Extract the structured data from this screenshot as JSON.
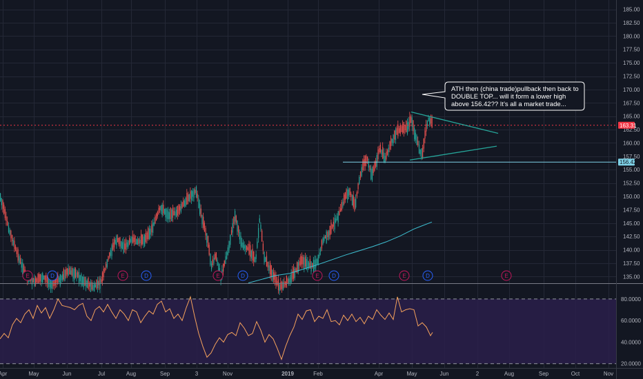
{
  "chart_data": {
    "type": "candlestick",
    "price_axis": {
      "ticks": [
        "185.00",
        "182.50",
        "180.00",
        "177.50",
        "175.00",
        "172.50",
        "170.00",
        "167.50",
        "165.00",
        "162.50",
        "160.00",
        "157.50",
        "155.00",
        "152.50",
        "150.00",
        "147.50",
        "145.00",
        "142.50",
        "140.00",
        "137.50",
        "135.00"
      ],
      "ylim": [
        133.75,
        186.75
      ]
    },
    "rsi_axis": {
      "ticks": [
        "80.0000",
        "60.0000",
        "40.0000",
        "20.0000"
      ],
      "ylim": [
        16,
        94
      ],
      "bands": [
        80,
        20
      ]
    },
    "x_axis": {
      "labels": [
        "Apr",
        "May",
        "Jun",
        "Jul",
        "Aug",
        "Sep",
        "3",
        "Nov",
        "2019",
        "Feb",
        "Apr",
        "May",
        "Jun",
        "2",
        "Aug",
        "Sep",
        "Oct",
        "Nov"
      ],
      "bold_label": "2019"
    },
    "candles_keypoints": [
      [
        0,
        150
      ],
      [
        12,
        144
      ],
      [
        25,
        139
      ],
      [
        38,
        135
      ],
      [
        50,
        134
      ],
      [
        62,
        135
      ],
      [
        74,
        133.5
      ],
      [
        86,
        134.5
      ],
      [
        98,
        136
      ],
      [
        110,
        135.5
      ],
      [
        122,
        134
      ],
      [
        134,
        133
      ],
      [
        146,
        134
      ],
      [
        158,
        139
      ],
      [
        168,
        142
      ],
      [
        180,
        140.5
      ],
      [
        190,
        142
      ],
      [
        200,
        141.5
      ],
      [
        210,
        142
      ],
      [
        220,
        144
      ],
      [
        232,
        148
      ],
      [
        244,
        146.5
      ],
      [
        256,
        147
      ],
      [
        268,
        149
      ],
      [
        278,
        150.5
      ],
      [
        284,
        151
      ],
      [
        292,
        146
      ],
      [
        300,
        142
      ],
      [
        306,
        137
      ],
      [
        312,
        139
      ],
      [
        320,
        135
      ],
      [
        330,
        140
      ],
      [
        340,
        146.5
      ],
      [
        350,
        141
      ],
      [
        360,
        140
      ],
      [
        370,
        138
      ],
      [
        376,
        146
      ],
      [
        382,
        139
      ],
      [
        388,
        137
      ],
      [
        396,
        135
      ],
      [
        404,
        133
      ],
      [
        412,
        133.5
      ],
      [
        420,
        134.5
      ],
      [
        428,
        136
      ],
      [
        436,
        138
      ],
      [
        444,
        137.5
      ],
      [
        452,
        137
      ],
      [
        460,
        138
      ],
      [
        468,
        142
      ],
      [
        476,
        143
      ],
      [
        484,
        145
      ],
      [
        492,
        147
      ],
      [
        500,
        150
      ],
      [
        506,
        151
      ],
      [
        514,
        148
      ],
      [
        520,
        153
      ],
      [
        526,
        156
      ],
      [
        532,
        157
      ],
      [
        538,
        154
      ],
      [
        544,
        156
      ],
      [
        550,
        159
      ],
      [
        558,
        157
      ],
      [
        566,
        160
      ],
      [
        574,
        162
      ],
      [
        582,
        162.5
      ],
      [
        590,
        163
      ],
      [
        596,
        164.5
      ],
      [
        600,
        162
      ],
      [
        604,
        160.5
      ],
      [
        608,
        158.5
      ],
      [
        612,
        158
      ],
      [
        616,
        162
      ],
      [
        620,
        164.5
      ],
      [
        624,
        164
      ],
      [
        627,
        163.5
      ]
    ],
    "ma_points": [
      [
        360,
        133.8
      ],
      [
        380,
        134.5
      ],
      [
        400,
        135.2
      ],
      [
        420,
        135.6
      ],
      [
        440,
        136.4
      ],
      [
        460,
        137.2
      ],
      [
        480,
        138.1
      ],
      [
        500,
        139.0
      ],
      [
        520,
        139.8
      ],
      [
        540,
        140.6
      ],
      [
        560,
        141.5
      ],
      [
        580,
        142.6
      ],
      [
        600,
        143.9
      ],
      [
        610,
        144.4
      ],
      [
        626,
        145.2
      ]
    ],
    "rsi_points": [
      [
        0,
        43
      ],
      [
        6,
        48
      ],
      [
        12,
        44
      ],
      [
        18,
        56
      ],
      [
        24,
        62
      ],
      [
        30,
        58
      ],
      [
        36,
        66
      ],
      [
        42,
        70
      ],
      [
        48,
        62
      ],
      [
        54,
        74
      ],
      [
        60,
        67
      ],
      [
        66,
        72
      ],
      [
        72,
        62
      ],
      [
        78,
        70
      ],
      [
        84,
        80
      ],
      [
        90,
        74
      ],
      [
        96,
        73
      ],
      [
        102,
        72
      ],
      [
        108,
        70
      ],
      [
        114,
        74
      ],
      [
        120,
        76
      ],
      [
        126,
        64
      ],
      [
        132,
        60
      ],
      [
        138,
        70
      ],
      [
        144,
        73
      ],
      [
        150,
        68
      ],
      [
        156,
        75
      ],
      [
        162,
        68
      ],
      [
        168,
        62
      ],
      [
        174,
        70
      ],
      [
        180,
        66
      ],
      [
        186,
        60
      ],
      [
        192,
        70
      ],
      [
        198,
        68
      ],
      [
        204,
        58
      ],
      [
        210,
        64
      ],
      [
        216,
        69
      ],
      [
        222,
        66
      ],
      [
        228,
        75
      ],
      [
        234,
        78
      ],
      [
        240,
        68
      ],
      [
        246,
        71
      ],
      [
        252,
        62
      ],
      [
        258,
        66
      ],
      [
        264,
        60
      ],
      [
        270,
        72
      ],
      [
        276,
        82
      ],
      [
        282,
        64
      ],
      [
        288,
        48
      ],
      [
        294,
        36
      ],
      [
        300,
        26
      ],
      [
        306,
        30
      ],
      [
        312,
        38
      ],
      [
        318,
        44
      ],
      [
        324,
        40
      ],
      [
        330,
        47
      ],
      [
        336,
        49
      ],
      [
        342,
        46
      ],
      [
        348,
        58
      ],
      [
        354,
        53
      ],
      [
        360,
        46
      ],
      [
        366,
        48
      ],
      [
        372,
        59
      ],
      [
        378,
        51
      ],
      [
        384,
        40
      ],
      [
        390,
        47
      ],
      [
        396,
        43
      ],
      [
        402,
        34
      ],
      [
        408,
        24
      ],
      [
        414,
        36
      ],
      [
        420,
        46
      ],
      [
        426,
        54
      ],
      [
        432,
        66
      ],
      [
        438,
        61
      ],
      [
        444,
        69
      ],
      [
        450,
        70
      ],
      [
        456,
        59
      ],
      [
        462,
        64
      ],
      [
        468,
        62
      ],
      [
        474,
        70
      ],
      [
        480,
        59
      ],
      [
        486,
        60
      ],
      [
        492,
        56
      ],
      [
        498,
        65
      ],
      [
        504,
        60
      ],
      [
        510,
        66
      ],
      [
        516,
        59
      ],
      [
        522,
        63
      ],
      [
        528,
        57
      ],
      [
        534,
        64
      ],
      [
        540,
        61
      ],
      [
        546,
        70
      ],
      [
        552,
        65
      ],
      [
        558,
        61
      ],
      [
        564,
        67
      ],
      [
        570,
        61
      ],
      [
        576,
        82
      ],
      [
        582,
        68
      ],
      [
        588,
        70
      ],
      [
        594,
        71
      ],
      [
        600,
        70
      ],
      [
        606,
        55
      ],
      [
        612,
        58
      ],
      [
        618,
        54
      ],
      [
        624,
        46
      ],
      [
        627,
        49
      ]
    ],
    "levels": {
      "current_price": 163.31,
      "support": 156.42
    },
    "current_price_label": "163.31",
    "support_label": "156.42",
    "trendlines": [
      {
        "color": "#26a69a",
        "points": [
          [
            596,
            165.8
          ],
          [
            722,
            161.8
          ]
        ]
      },
      {
        "color": "#26a69a",
        "points": [
          [
            594,
            156.8
          ],
          [
            720,
            159.4
          ]
        ]
      }
    ],
    "events": [
      {
        "x": 40,
        "kind": "E"
      },
      {
        "x": 76,
        "kind": "D"
      },
      {
        "x": 178,
        "kind": "E"
      },
      {
        "x": 212,
        "kind": "D"
      },
      {
        "x": 316,
        "kind": "E"
      },
      {
        "x": 352,
        "kind": "D"
      },
      {
        "x": 460,
        "kind": "E"
      },
      {
        "x": 484,
        "kind": "D"
      },
      {
        "x": 586,
        "kind": "E"
      },
      {
        "x": 620,
        "kind": "D"
      },
      {
        "x": 734,
        "kind": "E"
      }
    ],
    "annotation": {
      "lines": [
        "ATH then (china trade)pullback then back to",
        "DOUBLE TOP... will it form a lower high",
        "above 156.42?? It's all a market trade..."
      ]
    },
    "colors": {
      "background": "#131722",
      "grid": "#242836",
      "up": "#26a69a",
      "down": "#ef5350",
      "ma": "#3ec1d3",
      "rsi": "#f7a35c",
      "rsi_band": "#2a1e4a",
      "current_price": "#f23645",
      "support": "#7fd3e8",
      "event_e": "#c2185b",
      "event_d": "#2962ff"
    }
  }
}
